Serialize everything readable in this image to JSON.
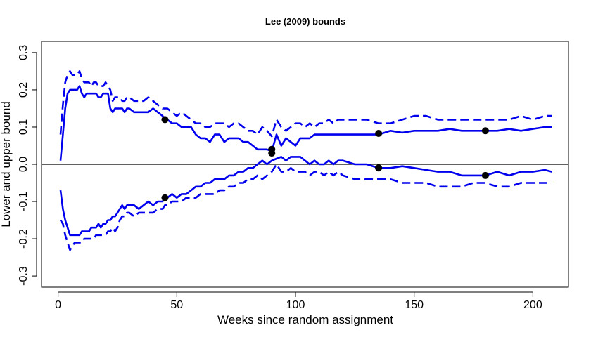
{
  "chart_data": {
    "type": "line",
    "title": "Lee (2009) bounds",
    "xlabel": "Weeks since random assignment",
    "ylabel": "Lower and upper bound",
    "xlim": [
      -7,
      215
    ],
    "ylim": [
      -0.33,
      0.33
    ],
    "x_ticks": [
      0,
      50,
      100,
      150,
      200
    ],
    "x_tick_labels": [
      "0",
      "50",
      "100",
      "150",
      "200"
    ],
    "y_ticks": [
      -0.3,
      -0.2,
      -0.1,
      0.0,
      0.1,
      0.2,
      0.3
    ],
    "y_tick_labels": [
      "-0.3",
      "-0.2",
      "-0.1",
      "0.0",
      "0.1",
      "0.2",
      "0.3"
    ],
    "reference_line_y": 0,
    "colors": {
      "series": "#0000ee",
      "points": "#000000",
      "refline": "#000000"
    },
    "series": [
      {
        "style": "solid",
        "x": [
          1,
          2,
          3,
          4,
          5,
          6,
          7,
          8,
          9,
          10,
          11,
          12,
          13,
          14,
          15,
          16,
          17,
          18,
          19,
          20,
          21,
          22,
          23,
          24,
          25,
          26,
          27,
          28,
          29,
          30,
          32,
          34,
          36,
          38,
          40,
          42,
          44,
          45,
          46,
          48,
          50,
          52,
          54,
          56,
          58,
          60,
          62,
          64,
          66,
          68,
          70,
          72,
          74,
          76,
          78,
          80,
          82,
          84,
          86,
          88,
          90,
          92,
          94,
          96,
          98,
          100,
          102,
          104,
          106,
          108,
          110,
          112,
          114,
          116,
          118,
          120,
          125,
          130,
          135,
          140,
          145,
          150,
          155,
          160,
          165,
          170,
          175,
          180,
          185,
          190,
          195,
          200,
          205,
          208
        ],
        "y": [
          0.01,
          0.08,
          0.15,
          0.19,
          0.2,
          0.2,
          0.2,
          0.2,
          0.21,
          0.19,
          0.18,
          0.19,
          0.19,
          0.19,
          0.19,
          0.19,
          0.18,
          0.18,
          0.19,
          0.19,
          0.19,
          0.15,
          0.14,
          0.15,
          0.15,
          0.15,
          0.15,
          0.14,
          0.15,
          0.15,
          0.14,
          0.14,
          0.14,
          0.14,
          0.15,
          0.14,
          0.13,
          0.12,
          0.12,
          0.11,
          0.11,
          0.1,
          0.1,
          0.1,
          0.08,
          0.07,
          0.07,
          0.06,
          0.08,
          0.08,
          0.06,
          0.07,
          0.07,
          0.07,
          0.06,
          0.06,
          0.05,
          0.04,
          0.04,
          0.04,
          0.035,
          0.08,
          0.05,
          0.07,
          0.06,
          0.05,
          0.07,
          0.07,
          0.07,
          0.08,
          0.08,
          0.08,
          0.08,
          0.08,
          0.08,
          0.08,
          0.08,
          0.08,
          0.08,
          0.09,
          0.085,
          0.09,
          0.09,
          0.09,
          0.095,
          0.09,
          0.09,
          0.09,
          0.09,
          0.095,
          0.09,
          0.095,
          0.1,
          0.1
        ]
      },
      {
        "style": "dashed",
        "x": [
          1,
          2,
          3,
          4,
          5,
          6,
          7,
          8,
          9,
          10,
          11,
          12,
          13,
          14,
          15,
          16,
          17,
          18,
          19,
          20,
          21,
          22,
          23,
          24,
          25,
          26,
          27,
          28,
          29,
          30,
          32,
          34,
          36,
          38,
          40,
          42,
          44,
          45,
          46,
          48,
          50,
          52,
          54,
          56,
          58,
          60,
          62,
          64,
          66,
          68,
          70,
          72,
          74,
          76,
          78,
          80,
          82,
          84,
          86,
          88,
          90,
          92,
          94,
          96,
          98,
          100,
          102,
          104,
          106,
          108,
          110,
          112,
          114,
          116,
          118,
          120,
          125,
          130,
          135,
          140,
          145,
          150,
          155,
          160,
          165,
          170,
          175,
          180,
          185,
          190,
          195,
          200,
          205,
          208
        ],
        "y": [
          0.08,
          0.16,
          0.22,
          0.24,
          0.25,
          0.24,
          0.24,
          0.24,
          0.25,
          0.23,
          0.22,
          0.22,
          0.22,
          0.21,
          0.22,
          0.22,
          0.21,
          0.21,
          0.21,
          0.22,
          0.21,
          0.2,
          0.17,
          0.18,
          0.18,
          0.18,
          0.17,
          0.17,
          0.18,
          0.18,
          0.17,
          0.17,
          0.17,
          0.18,
          0.17,
          0.16,
          0.15,
          0.15,
          0.15,
          0.14,
          0.13,
          0.14,
          0.13,
          0.12,
          0.11,
          0.11,
          0.1,
          0.1,
          0.11,
          0.11,
          0.11,
          0.1,
          0.11,
          0.11,
          0.1,
          0.09,
          0.09,
          0.08,
          0.1,
          0.09,
          0.075,
          0.12,
          0.1,
          0.09,
          0.1,
          0.11,
          0.11,
          0.1,
          0.11,
          0.1,
          0.11,
          0.11,
          0.12,
          0.11,
          0.12,
          0.12,
          0.12,
          0.12,
          0.11,
          0.11,
          0.12,
          0.13,
          0.13,
          0.12,
          0.12,
          0.12,
          0.12,
          0.12,
          0.12,
          0.12,
          0.13,
          0.12,
          0.13,
          0.13
        ]
      },
      {
        "style": "solid",
        "x": [
          1,
          2,
          3,
          4,
          5,
          6,
          7,
          8,
          9,
          10,
          11,
          12,
          13,
          14,
          15,
          16,
          17,
          18,
          19,
          20,
          21,
          22,
          23,
          24,
          25,
          26,
          27,
          28,
          29,
          30,
          32,
          34,
          36,
          38,
          40,
          42,
          44,
          45,
          46,
          48,
          50,
          52,
          54,
          56,
          58,
          60,
          62,
          64,
          66,
          68,
          70,
          72,
          74,
          76,
          78,
          80,
          82,
          84,
          86,
          88,
          90,
          92,
          94,
          96,
          98,
          100,
          102,
          104,
          106,
          108,
          110,
          112,
          114,
          116,
          118,
          120,
          125,
          130,
          135,
          140,
          145,
          150,
          155,
          160,
          165,
          170,
          175,
          180,
          185,
          190,
          195,
          200,
          205,
          208
        ],
        "y": [
          -0.07,
          -0.12,
          -0.15,
          -0.17,
          -0.19,
          -0.19,
          -0.19,
          -0.19,
          -0.19,
          -0.18,
          -0.18,
          -0.18,
          -0.18,
          -0.17,
          -0.17,
          -0.17,
          -0.16,
          -0.17,
          -0.16,
          -0.16,
          -0.15,
          -0.15,
          -0.14,
          -0.14,
          -0.13,
          -0.12,
          -0.11,
          -0.12,
          -0.11,
          -0.11,
          -0.11,
          -0.12,
          -0.11,
          -0.1,
          -0.11,
          -0.1,
          -0.1,
          -0.09,
          -0.09,
          -0.08,
          -0.09,
          -0.08,
          -0.08,
          -0.07,
          -0.06,
          -0.06,
          -0.05,
          -0.05,
          -0.04,
          -0.04,
          -0.04,
          -0.03,
          -0.03,
          -0.02,
          -0.02,
          -0.01,
          -0.01,
          0.0,
          0.01,
          0.0,
          0.01,
          0.015,
          0.02,
          0.01,
          0.02,
          0.02,
          0.02,
          0.01,
          0.0,
          0.01,
          0.0,
          0.0,
          0.01,
          0.0,
          0.01,
          0.01,
          0.0,
          0.0,
          -0.01,
          -0.01,
          -0.005,
          -0.01,
          -0.015,
          -0.02,
          -0.02,
          -0.03,
          -0.03,
          -0.03,
          -0.02,
          -0.03,
          -0.02,
          -0.02,
          -0.015,
          -0.02
        ]
      },
      {
        "style": "dashed",
        "x": [
          1,
          2,
          3,
          4,
          5,
          6,
          7,
          8,
          9,
          10,
          11,
          12,
          13,
          14,
          15,
          16,
          17,
          18,
          19,
          20,
          21,
          22,
          23,
          24,
          25,
          26,
          27,
          28,
          29,
          30,
          32,
          34,
          36,
          38,
          40,
          42,
          44,
          45,
          46,
          48,
          50,
          52,
          54,
          56,
          58,
          60,
          62,
          64,
          66,
          68,
          70,
          72,
          74,
          76,
          78,
          80,
          82,
          84,
          86,
          88,
          90,
          92,
          94,
          96,
          98,
          100,
          102,
          104,
          106,
          108,
          110,
          112,
          114,
          116,
          118,
          120,
          125,
          130,
          135,
          140,
          145,
          150,
          155,
          160,
          165,
          170,
          175,
          180,
          185,
          190,
          195,
          200,
          205,
          208
        ],
        "y": [
          -0.15,
          -0.16,
          -0.19,
          -0.21,
          -0.23,
          -0.22,
          -0.21,
          -0.21,
          -0.21,
          -0.21,
          -0.2,
          -0.2,
          -0.2,
          -0.2,
          -0.2,
          -0.19,
          -0.19,
          -0.19,
          -0.19,
          -0.19,
          -0.18,
          -0.18,
          -0.17,
          -0.18,
          -0.17,
          -0.15,
          -0.14,
          -0.14,
          -0.13,
          -0.13,
          -0.14,
          -0.13,
          -0.13,
          -0.13,
          -0.13,
          -0.12,
          -0.12,
          -0.11,
          -0.11,
          -0.1,
          -0.1,
          -0.1,
          -0.09,
          -0.09,
          -0.09,
          -0.08,
          -0.08,
          -0.08,
          -0.08,
          -0.07,
          -0.07,
          -0.06,
          -0.06,
          -0.05,
          -0.05,
          -0.04,
          -0.04,
          -0.03,
          -0.04,
          -0.03,
          -0.02,
          0.0,
          -0.02,
          -0.02,
          -0.01,
          -0.02,
          -0.02,
          -0.02,
          -0.03,
          -0.02,
          -0.02,
          -0.03,
          -0.02,
          -0.03,
          -0.02,
          -0.03,
          -0.04,
          -0.04,
          -0.04,
          -0.04,
          -0.05,
          -0.05,
          -0.05,
          -0.06,
          -0.06,
          -0.06,
          -0.05,
          -0.05,
          -0.06,
          -0.06,
          -0.05,
          -0.05,
          -0.05,
          -0.05
        ]
      }
    ],
    "points": {
      "x": [
        45,
        45,
        90,
        90,
        135,
        135,
        180,
        180
      ],
      "y": [
        0.12,
        -0.09,
        0.04,
        0.03,
        0.083,
        -0.01,
        0.09,
        -0.03
      ]
    }
  }
}
